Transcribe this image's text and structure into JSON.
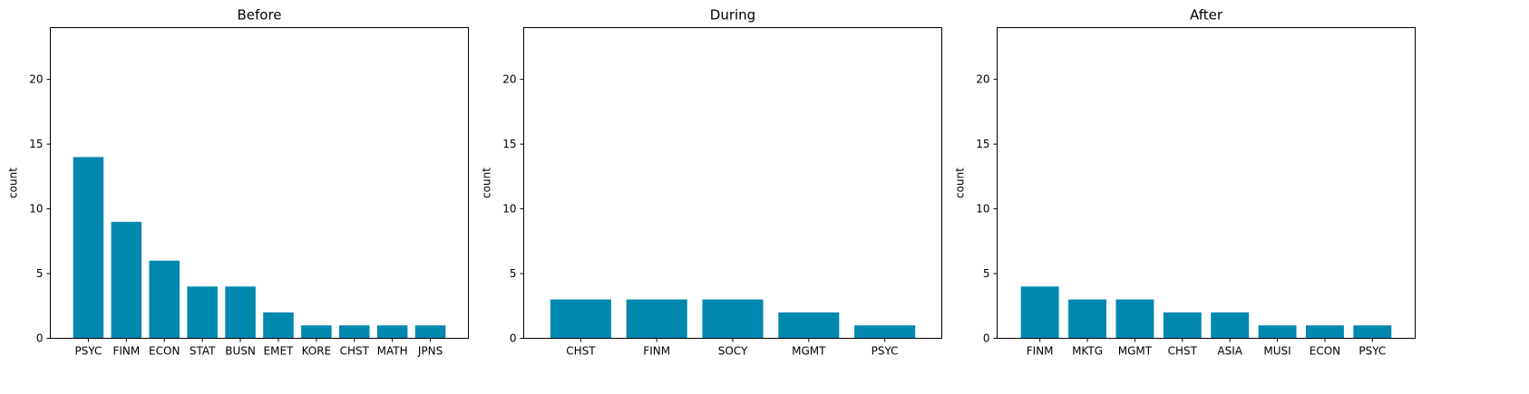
{
  "figure": {
    "background": "#ffffff"
  },
  "bar_color": "#0088ae",
  "chart_data": [
    {
      "type": "bar",
      "title": "Before",
      "xlabel": "",
      "ylabel": "count",
      "ylim": [
        0,
        24
      ],
      "yticks": [
        0,
        5,
        10,
        15,
        20
      ],
      "categories": [
        "PSYC",
        "FINM",
        "ECON",
        "STAT",
        "BUSN",
        "EMET",
        "KORE",
        "CHST",
        "MATH",
        "JPNS"
      ],
      "values": [
        14,
        9,
        6,
        4,
        4,
        2,
        1,
        1,
        1,
        1
      ],
      "grid": false
    },
    {
      "type": "bar",
      "title": "During",
      "xlabel": "",
      "ylabel": "count",
      "ylim": [
        0,
        24
      ],
      "yticks": [
        0,
        5,
        10,
        15,
        20
      ],
      "categories": [
        "CHST",
        "FINM",
        "SOCY",
        "MGMT",
        "PSYC"
      ],
      "values": [
        3,
        3,
        3,
        2,
        1
      ],
      "grid": false
    },
    {
      "type": "bar",
      "title": "After",
      "xlabel": "",
      "ylabel": "count",
      "ylim": [
        0,
        24
      ],
      "yticks": [
        0,
        5,
        10,
        15,
        20
      ],
      "categories": [
        "FINM",
        "MKTG",
        "MGMT",
        "CHST",
        "ASIA",
        "MUSI",
        "ECON",
        "PSYC"
      ],
      "values": [
        4,
        3,
        3,
        2,
        2,
        1,
        1,
        1
      ],
      "grid": false
    }
  ]
}
